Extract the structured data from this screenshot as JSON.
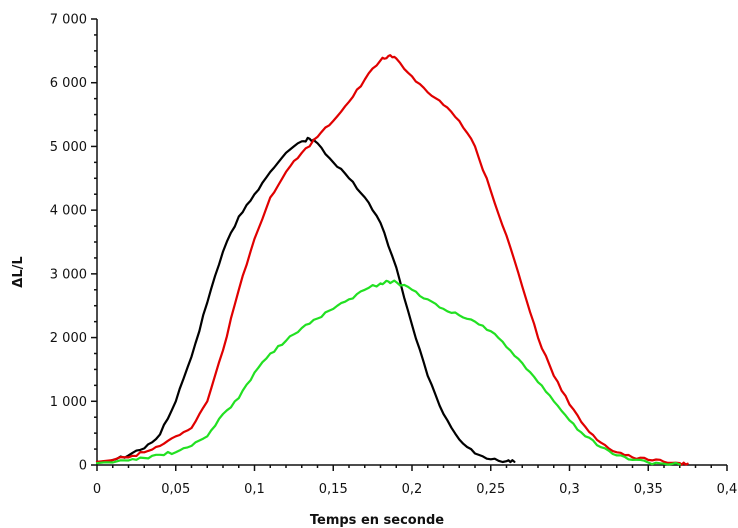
{
  "chart_data": {
    "type": "line",
    "title": "",
    "xlabel": "Temps en seconde",
    "ylabel": "ΔL/L",
    "xlim": [
      0,
      0.4
    ],
    "ylim": [
      0,
      7000
    ],
    "grid": false,
    "legend": "none",
    "x_ticks": [
      0,
      0.05,
      0.1,
      0.15,
      0.2,
      0.25,
      0.3,
      0.35,
      0.4
    ],
    "x_tick_labels": [
      "0",
      "0,05",
      "0,1",
      "0,15",
      "0,2",
      "0,25",
      "0,3",
      "0,35",
      "0,4"
    ],
    "y_ticks": [
      0,
      1000,
      2000,
      3000,
      4000,
      5000,
      6000,
      7000
    ],
    "y_tick_labels": [
      "0",
      "1 000",
      "2 000",
      "3 000",
      "4 000",
      "5 000",
      "6 000",
      "7 000"
    ],
    "series": [
      {
        "color": "#000000",
        "x": [
          0,
          0.01,
          0.02,
          0.03,
          0.04,
          0.05,
          0.06,
          0.07,
          0.08,
          0.09,
          0.1,
          0.11,
          0.12,
          0.13,
          0.135,
          0.14,
          0.15,
          0.16,
          0.17,
          0.18,
          0.19,
          0.2,
          0.21,
          0.22,
          0.23,
          0.24,
          0.25,
          0.26,
          0.265
        ],
        "y": [
          50,
          80,
          150,
          260,
          480,
          1000,
          1700,
          2550,
          3350,
          3900,
          4250,
          4600,
          4900,
          5080,
          5120,
          5050,
          4750,
          4500,
          4200,
          3800,
          3100,
          2200,
          1400,
          800,
          400,
          180,
          90,
          60,
          50
        ]
      },
      {
        "color": "#e00000",
        "x": [
          0,
          0.02,
          0.03,
          0.04,
          0.05,
          0.06,
          0.07,
          0.08,
          0.09,
          0.1,
          0.11,
          0.12,
          0.13,
          0.14,
          0.15,
          0.16,
          0.17,
          0.18,
          0.185,
          0.19,
          0.2,
          0.21,
          0.22,
          0.23,
          0.24,
          0.25,
          0.26,
          0.27,
          0.28,
          0.29,
          0.3,
          0.31,
          0.32,
          0.33,
          0.34,
          0.35,
          0.36,
          0.37,
          0.375
        ],
        "y": [
          50,
          120,
          200,
          300,
          450,
          580,
          1000,
          1800,
          2750,
          3550,
          4200,
          4600,
          4900,
          5150,
          5400,
          5700,
          6050,
          6350,
          6420,
          6380,
          6100,
          5850,
          5650,
          5400,
          5000,
          4300,
          3600,
          2800,
          2000,
          1400,
          950,
          600,
          350,
          200,
          120,
          80,
          50,
          30,
          20
        ]
      },
      {
        "color": "#22e022",
        "x": [
          0,
          0.02,
          0.03,
          0.04,
          0.05,
          0.06,
          0.07,
          0.08,
          0.09,
          0.1,
          0.11,
          0.12,
          0.13,
          0.14,
          0.15,
          0.16,
          0.17,
          0.18,
          0.185,
          0.19,
          0.2,
          0.21,
          0.22,
          0.23,
          0.24,
          0.25,
          0.26,
          0.27,
          0.28,
          0.29,
          0.3,
          0.31,
          0.32,
          0.33,
          0.34,
          0.35,
          0.36,
          0.37
        ],
        "y": [
          30,
          70,
          110,
          160,
          200,
          300,
          450,
          800,
          1050,
          1450,
          1750,
          1950,
          2150,
          2300,
          2450,
          2600,
          2750,
          2850,
          2880,
          2870,
          2750,
          2600,
          2450,
          2350,
          2250,
          2100,
          1850,
          1600,
          1300,
          1000,
          700,
          450,
          280,
          150,
          80,
          40,
          20,
          10
        ]
      }
    ]
  }
}
